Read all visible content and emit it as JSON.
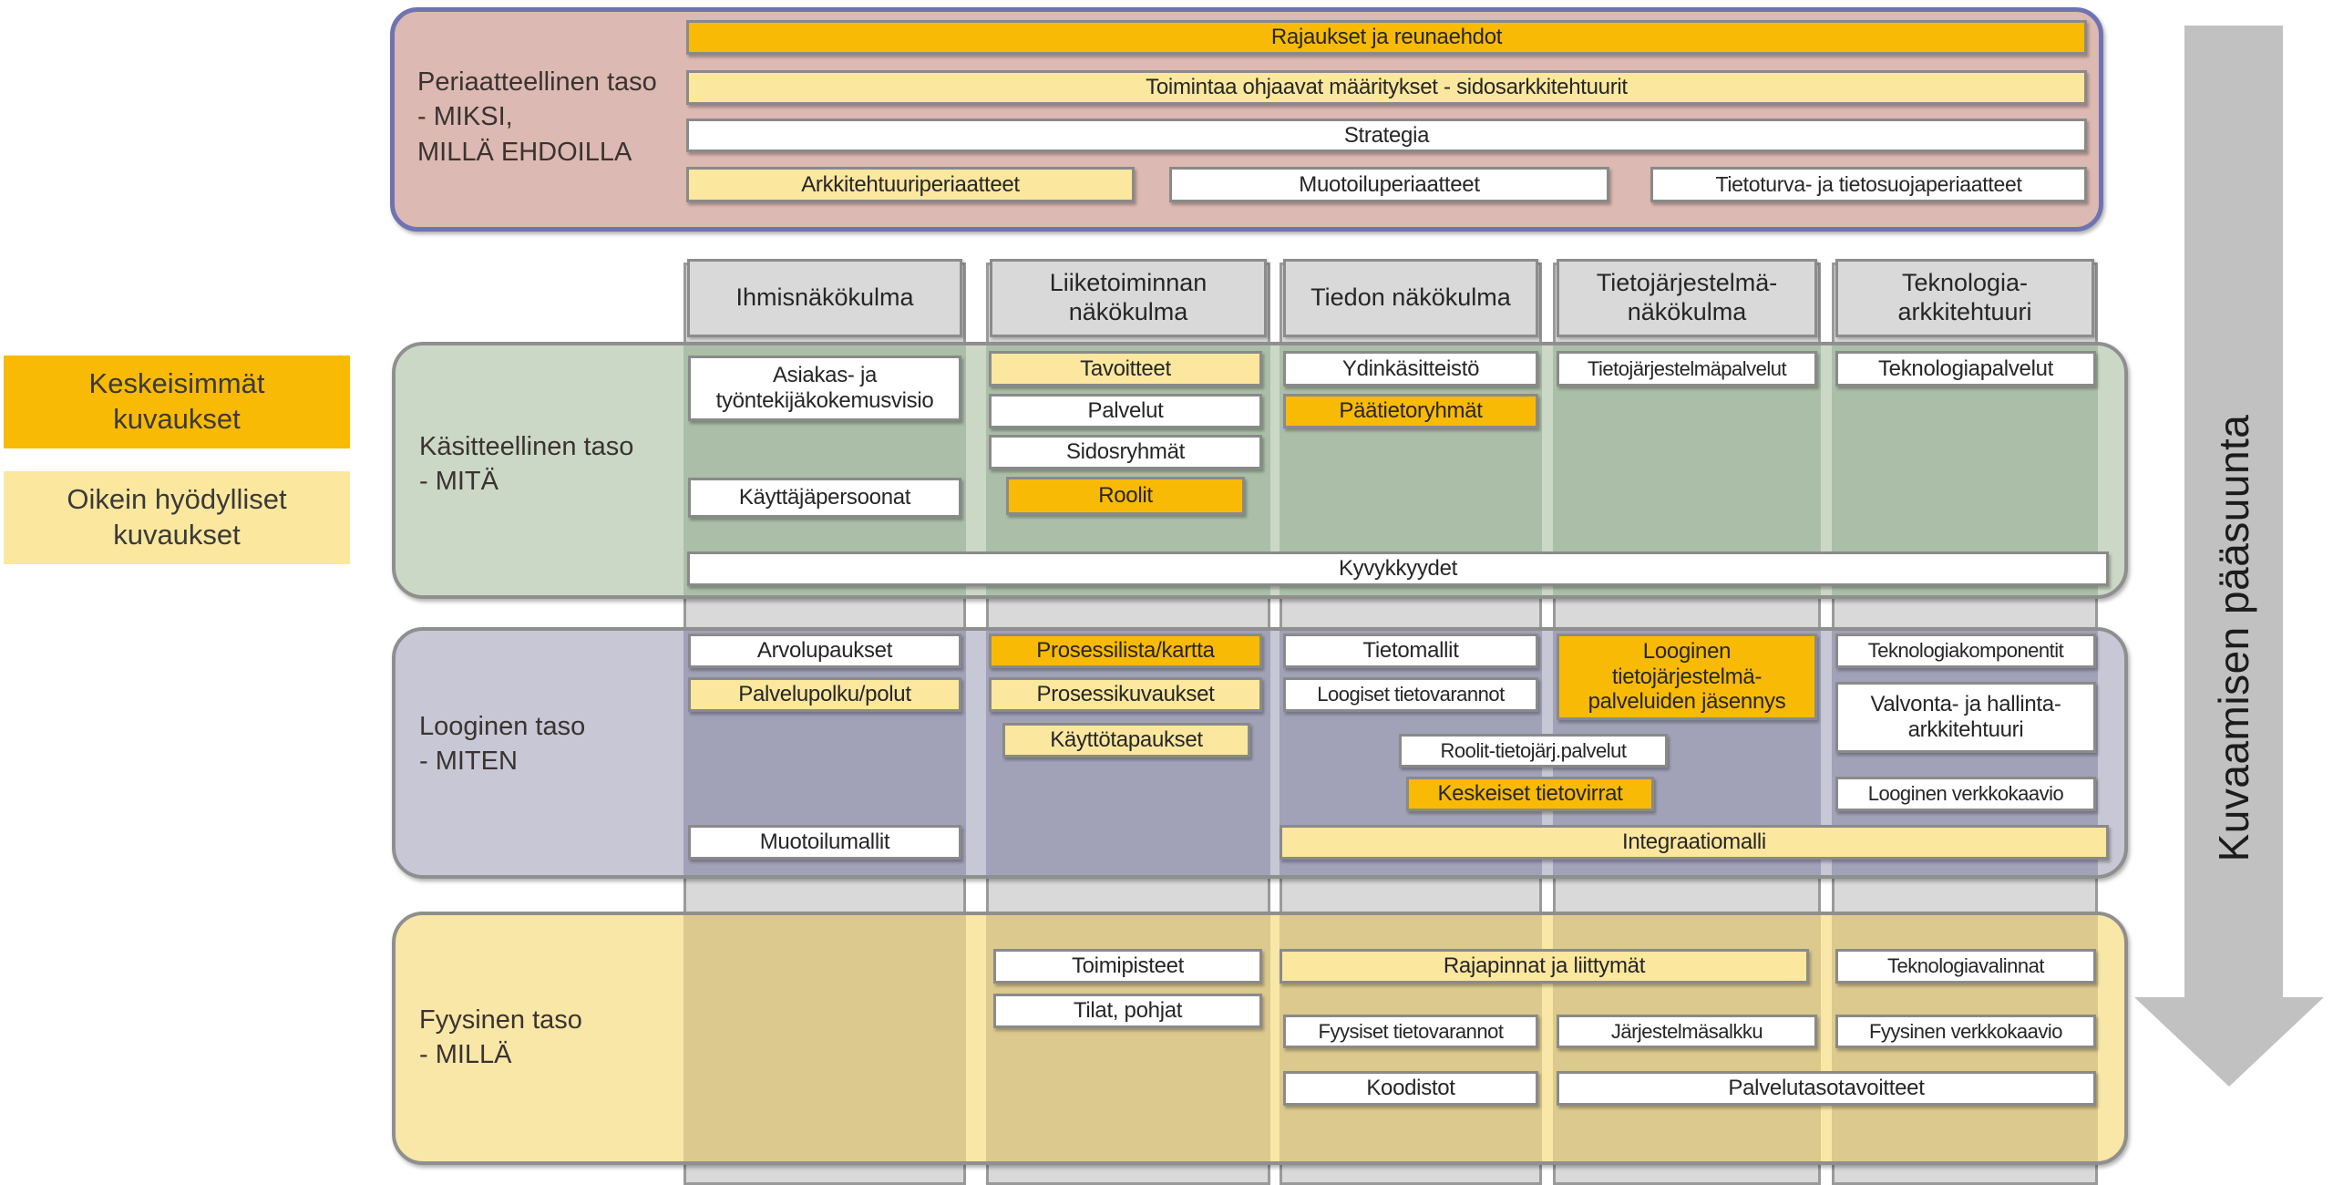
{
  "colors": {
    "highlight_orange": "#F9BA05",
    "highlight_yellow": "#FBE79E",
    "principle_fill": "#DDB9B3",
    "principle_border": "#6F73B2",
    "conceptual_fill": "#CCD8C6",
    "conceptual_strip": "#ABBFA8",
    "logical_fill": "#C7C7D5",
    "logical_strip": "#A1A2B8",
    "physical_fill": "#F8E7A7",
    "physical_strip": "#DBC98E",
    "header_gray": "#D9D9D9",
    "border_gray": "#8C8C8C",
    "arrow_gray": "#C1C1C1"
  },
  "legend": {
    "most_important": "Keskeisimmät\nkuvaukset",
    "really_useful": "Oikein hyödylliset\nkuvaukset"
  },
  "principle_level": {
    "label": "Periaatteellinen taso\n- MIKSI,\nMILLÄ EHDOILLA",
    "constraints_bar": "Rajaukset ja reunaehdot",
    "guiding_definitions_bar": "Toimintaa ohjaavat määritykset - sidosarkkitehtuurit",
    "strategy_bar": "Strategia",
    "architecture_principles": "Arkkitehtuuriperiaatteet",
    "design_principles": "Muotoiluperiaatteet",
    "security_privacy_principles": "Tietoturva- ja tietosuojaperiaatteet"
  },
  "column_headers": {
    "human": "Ihmisnäkökulma",
    "business": "Liiketoiminnan\nnäkökulma",
    "information": "Tiedon näkökulma",
    "information_system": "Tietojärjestelmä-\nnäkökulma",
    "technology": "Teknologia-\narkkitehtuuri"
  },
  "conceptual_level": {
    "label": "Käsitteellinen taso\n- MITÄ",
    "customer_employee_vision": "Asiakas- ja\ntyöntekijäkokemusvisio",
    "user_personas": "Käyttäjäpersoonat",
    "goals": "Tavoitteet",
    "services": "Palvelut",
    "stakeholders": "Sidosryhmät",
    "roles": "Roolit",
    "core_concepts": "Ydinkäsitteistö",
    "main_data_groups": "Päätietoryhmät",
    "information_system_services": "Tietojärjestelmäpalvelut",
    "technology_services": "Teknologiapalvelut",
    "capabilities": "Kyvykkyydet"
  },
  "logical_level": {
    "label": "Looginen taso\n- MITEN",
    "value_propositions": "Arvolupaukset",
    "service_paths": "Palvelupolku/polut",
    "design_models": "Muotoilumallit",
    "process_list_map": "Prosessilista/kartta",
    "process_descriptions": "Prosessikuvaukset",
    "use_cases": "Käyttötapaukset",
    "data_models": "Tietomallit",
    "logical_data_stores": "Loogiset tietovarannot",
    "roles_is_services": "Roolit-tietojärj.palvelut",
    "key_data_flows": "Keskeiset tietovirrat",
    "logical_is_service_structure": "Looginen\ntietojärjestelmä-\npalveluiden jäsennys",
    "technology_components": "Teknologiakomponentit",
    "monitoring_mgmt_architecture": "Valvonta- ja hallinta-\narkkitehtuuri",
    "logical_network_diagram": "Looginen verkkokaavio",
    "integration_model": "Integraatiomalli"
  },
  "physical_level": {
    "label": "Fyysinen taso\n- MILLÄ",
    "offices": "Toimipisteet",
    "premises_layouts": "Tilat, pohjat",
    "interfaces_connections": "Rajapinnat ja liittymät",
    "technology_choices": "Teknologiavalinnat",
    "physical_data_stores": "Fyysiset tietovarannot",
    "system_portfolio": "Järjestelmäsalkku",
    "physical_network_diagram": "Fyysinen verkkokaavio",
    "code_sets": "Koodistot",
    "service_level_targets": "Palvelutasotavoitteet"
  },
  "direction_arrow": {
    "label": "Kuvaamisen pääsuunta"
  }
}
